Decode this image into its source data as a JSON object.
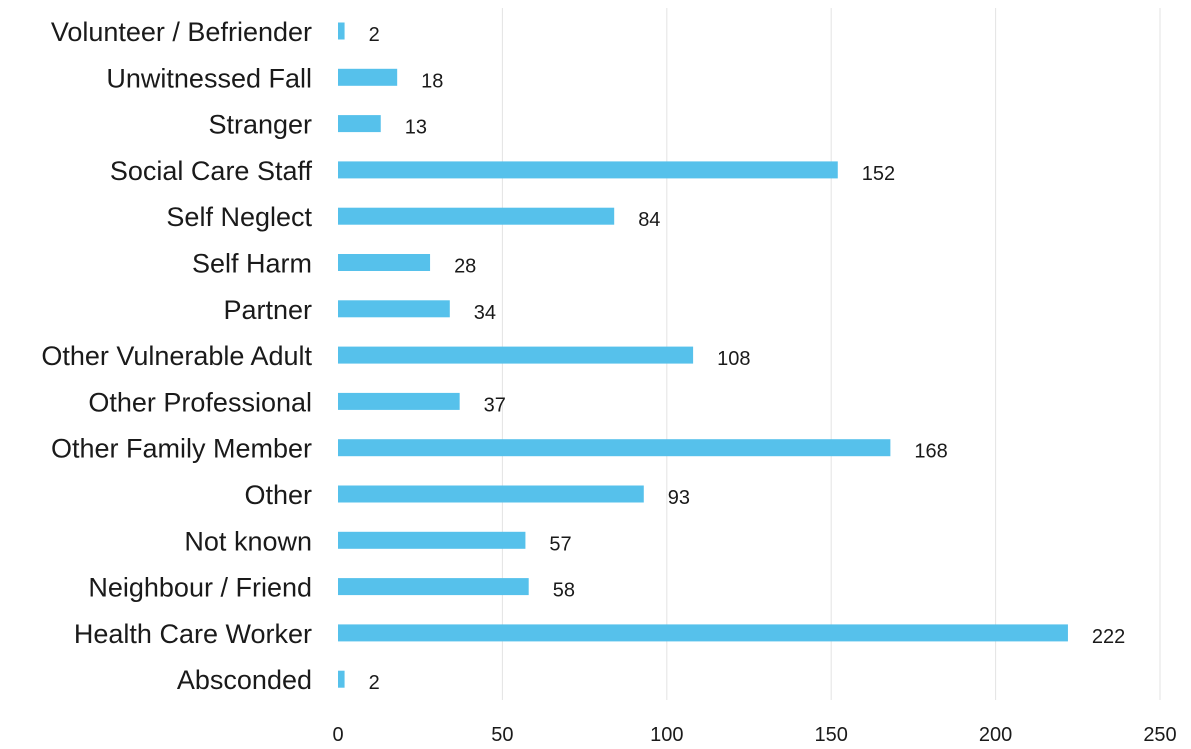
{
  "chart_data": {
    "type": "bar",
    "orientation": "horizontal",
    "categories": [
      "Volunteer / Befriender",
      "Unwitnessed Fall",
      "Stranger",
      "Social Care Staff",
      "Self Neglect",
      "Self Harm",
      "Partner",
      "Other Vulnerable Adult",
      "Other Professional",
      "Other Family Member",
      "Other",
      "Not known",
      "Neighbour / Friend",
      "Health Care Worker",
      "Absconded"
    ],
    "values": [
      2,
      18,
      13,
      152,
      84,
      28,
      34,
      108,
      37,
      168,
      93,
      57,
      58,
      222,
      2
    ],
    "x_ticks": [
      "0",
      "50",
      "100",
      "150",
      "200",
      "250"
    ],
    "xlim": [
      0,
      250
    ],
    "grid": true,
    "bar_color": "#56c1eb",
    "data_labels": true,
    "legend": "none"
  }
}
